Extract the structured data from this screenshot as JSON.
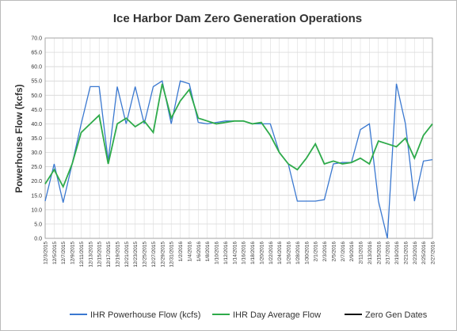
{
  "chart_data": {
    "type": "line",
    "title": "Ice Harbor Dam Zero Generation Operations",
    "y_label": "Powerhouse Flow (kcfs)",
    "categories": [
      "12/3/2015",
      "12/5/2015",
      "12/7/2015",
      "12/9/2015",
      "12/11/2015",
      "12/13/2015",
      "12/15/2015",
      "12/17/2015",
      "12/19/2015",
      "12/21/2015",
      "12/23/2015",
      "12/25/2015",
      "12/27/2015",
      "12/29/2015",
      "12/31/2015",
      "1/2/2016",
      "1/4/2016",
      "1/6/2016",
      "1/8/2016",
      "1/10/2016",
      "1/12/2016",
      "1/14/2016",
      "1/16/2016",
      "1/18/2016",
      "1/20/2016",
      "1/22/2016",
      "1/24/2016",
      "1/26/2016",
      "1/28/2016",
      "1/30/2016",
      "2/1/2016",
      "2/3/2016",
      "2/5/2016",
      "2/7/2016",
      "2/9/2016",
      "2/11/2016",
      "2/13/2016",
      "2/15/2016",
      "2/17/2016",
      "2/19/2016",
      "2/21/2016",
      "2/23/2016",
      "2/25/2016",
      "2/27/2016"
    ],
    "series": [
      {
        "name": "IHR Powerhouse Flow (kcfs)",
        "color": "#3a78d0",
        "values": [
          13,
          26,
          12.5,
          26,
          40,
          53,
          53,
          27,
          53,
          40,
          53,
          40,
          53,
          55,
          40,
          55,
          54,
          40.5,
          40,
          40.5,
          41,
          41,
          41,
          40,
          40,
          40,
          30,
          26,
          13,
          13,
          13,
          13.5,
          26,
          26.5,
          26.5,
          38,
          40,
          13,
          0,
          54,
          40,
          13,
          27,
          27.5
        ]
      },
      {
        "name": "IHR Day Average Flow",
        "color": "#2eaa4a",
        "values": [
          19,
          24,
          18,
          26,
          37,
          40,
          43,
          26,
          40,
          42,
          39,
          41,
          37,
          54,
          42,
          48,
          52,
          42,
          41,
          40,
          40.5,
          41,
          41,
          40,
          40.5,
          36,
          30,
          26,
          24,
          28,
          33,
          26,
          27,
          26,
          26.5,
          28,
          26,
          34,
          33,
          32,
          35,
          28,
          36,
          40
        ]
      },
      {
        "name": "Zero Gen Dates",
        "color": "#111111",
        "values": [
          null,
          null,
          null,
          null,
          null,
          null,
          null,
          null,
          null,
          null,
          null,
          null,
          null,
          null,
          null,
          null,
          null,
          null,
          null,
          null,
          null,
          null,
          null,
          null,
          null,
          null,
          null,
          null,
          null,
          null,
          null,
          null,
          null,
          null,
          null,
          null,
          null,
          null,
          null,
          null,
          null,
          null,
          null,
          null
        ]
      }
    ],
    "ylim": [
      0,
      70
    ],
    "yticks": [
      {
        "value": 0,
        "label": "0.0"
      },
      {
        "value": 5,
        "label": "5.0"
      },
      {
        "value": 10,
        "label": "10.0"
      },
      {
        "value": 15,
        "label": "15.0"
      },
      {
        "value": 20,
        "label": "20.0"
      },
      {
        "value": 25,
        "label": "25.0"
      },
      {
        "value": 30,
        "label": "30.0"
      },
      {
        "value": 35,
        "label": "35.0"
      },
      {
        "value": 40,
        "label": "40.0"
      },
      {
        "value": 45,
        "label": "45.0"
      },
      {
        "value": 50,
        "label": "50.0"
      },
      {
        "value": 55,
        "label": "55.0"
      },
      {
        "value": 60,
        "label": "60.0"
      },
      {
        "value": 65,
        "label": "65.0"
      },
      {
        "value": 70,
        "label": "70.0"
      }
    ],
    "grid": true
  }
}
